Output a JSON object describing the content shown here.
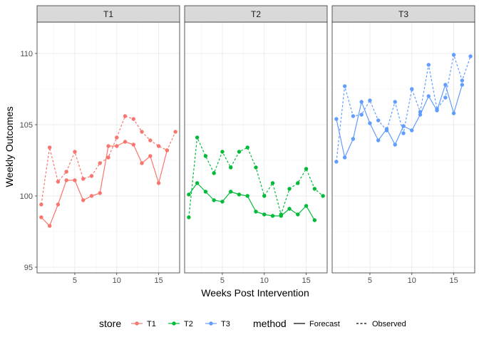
{
  "chart_data": {
    "type": "line",
    "xlabel": "Weeks Post Intervention",
    "ylabel": "Weekly Outcomes",
    "xlim": [
      0.5,
      17.5
    ],
    "ylim": [
      94.6,
      112.2
    ],
    "x_ticks": [
      5,
      10,
      15
    ],
    "y_ticks": [
      95,
      100,
      105,
      110
    ],
    "grid": true,
    "facets": [
      "T1",
      "T2",
      "T3"
    ],
    "colors": {
      "T1": "#F8766D",
      "T2": "#00BA38",
      "T3": "#619CFF"
    },
    "series": [
      {
        "store": "T1",
        "method": "Observed",
        "x": [
          1,
          2,
          3,
          4,
          5,
          6,
          7,
          8,
          9,
          10,
          11,
          12,
          13,
          14,
          15,
          16,
          17
        ],
        "y": [
          99.4,
          103.4,
          101.0,
          101.7,
          103.1,
          101.2,
          101.4,
          102.3,
          102.7,
          104.1,
          105.6,
          105.4,
          104.5,
          103.9,
          103.5,
          103.2,
          104.5
        ]
      },
      {
        "store": "T1",
        "method": "Forecast",
        "x": [
          1,
          2,
          3,
          4,
          5,
          6,
          7,
          8,
          9,
          10,
          11,
          12,
          13,
          14,
          15,
          16
        ],
        "y": [
          98.5,
          97.9,
          99.4,
          101.1,
          101.1,
          99.7,
          100.0,
          100.2,
          103.5,
          103.5,
          103.8,
          103.6,
          102.3,
          102.8,
          100.9,
          103.2
        ]
      },
      {
        "store": "T2",
        "method": "Observed",
        "x": [
          1,
          2,
          3,
          4,
          5,
          6,
          7,
          8,
          9,
          10,
          11,
          12,
          13,
          14,
          15,
          16,
          17
        ],
        "y": [
          98.5,
          104.1,
          102.8,
          101.6,
          103.1,
          102.0,
          103.1,
          103.4,
          102.0,
          100.0,
          100.9,
          98.7,
          100.5,
          100.9,
          101.9,
          100.5,
          100.0
        ]
      },
      {
        "store": "T2",
        "method": "Forecast",
        "x": [
          1,
          2,
          3,
          4,
          5,
          6,
          7,
          8,
          9,
          10,
          11,
          12,
          13,
          14,
          15,
          16
        ],
        "y": [
          100.1,
          100.9,
          100.3,
          99.7,
          99.6,
          100.3,
          100.1,
          100.0,
          98.9,
          98.7,
          98.6,
          98.6,
          99.1,
          98.7,
          99.3,
          98.3
        ]
      },
      {
        "store": "T3",
        "method": "Observed",
        "x": [
          1,
          2,
          3,
          4,
          5,
          6,
          7,
          8,
          9,
          10,
          11,
          12,
          13,
          14,
          15,
          16,
          17
        ],
        "y": [
          102.4,
          107.7,
          105.6,
          105.7,
          106.7,
          105.3,
          104.6,
          106.6,
          104.4,
          107.5,
          105.9,
          109.2,
          106.1,
          106.9,
          109.9,
          108.1,
          109.8
        ]
      },
      {
        "store": "T3",
        "method": "Forecast",
        "x": [
          1,
          2,
          3,
          4,
          5,
          6,
          7,
          8,
          9,
          10,
          11,
          12,
          13,
          14,
          15,
          16
        ],
        "y": [
          105.4,
          102.7,
          104.0,
          106.6,
          105.1,
          103.9,
          104.7,
          103.6,
          104.9,
          104.6,
          105.7,
          107.0,
          106.0,
          107.8,
          105.8,
          107.8
        ]
      }
    ],
    "legend": {
      "placement": "bottom",
      "store_title": "store",
      "store_items": [
        "T1",
        "T2",
        "T3"
      ],
      "method_title": "method",
      "method_items": [
        "Forecast",
        "Observed"
      ]
    }
  }
}
